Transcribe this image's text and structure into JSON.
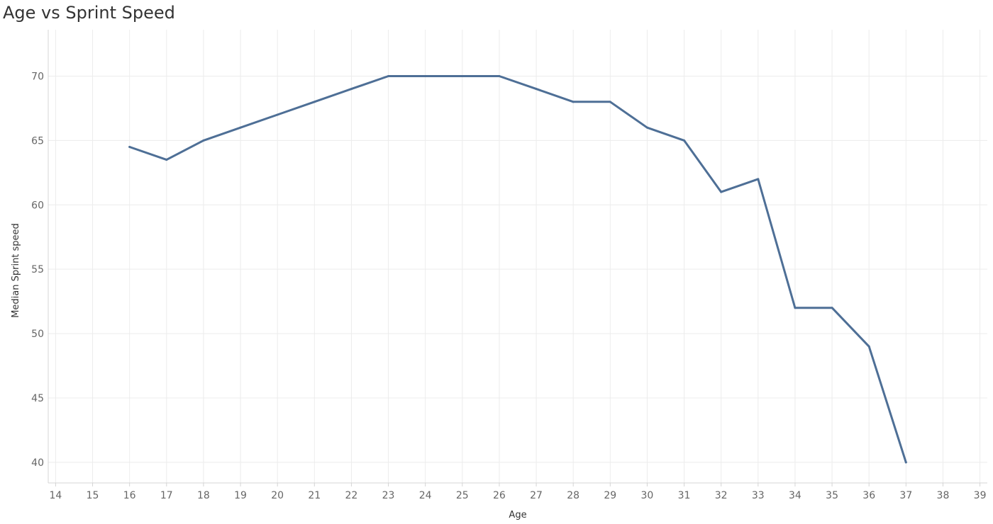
{
  "chart_data": {
    "type": "line",
    "title": "Age vs Sprint Speed",
    "xlabel": "Age",
    "ylabel": "Median Sprint speed",
    "x_ticks": [
      14,
      15,
      16,
      17,
      18,
      19,
      20,
      21,
      22,
      23,
      24,
      25,
      26,
      27,
      28,
      29,
      30,
      31,
      32,
      33,
      34,
      35,
      36,
      37,
      38,
      39
    ],
    "y_ticks": [
      40,
      45,
      50,
      55,
      60,
      65,
      70
    ],
    "xlim": [
      13.8,
      39.2
    ],
    "ylim": [
      38.4,
      73.6
    ],
    "grid": true,
    "series": [
      {
        "x": [
          16,
          17,
          18,
          19,
          20,
          21,
          22,
          23,
          24,
          25,
          26,
          27,
          28,
          29,
          30,
          31,
          32,
          33,
          34,
          35,
          36,
          37
        ],
        "values": [
          64.5,
          63.5,
          65,
          66,
          67,
          68,
          69,
          70,
          70,
          70,
          70,
          69,
          68,
          68,
          66,
          65,
          61,
          62,
          52,
          52,
          49,
          40
        ],
        "color": "#4e6f96"
      }
    ],
    "colors": {
      "line": "#4e6f96",
      "grid": "#ececec",
      "axis": "#d4d4d4",
      "tick_text": "#666666",
      "title_text": "#333333"
    }
  }
}
